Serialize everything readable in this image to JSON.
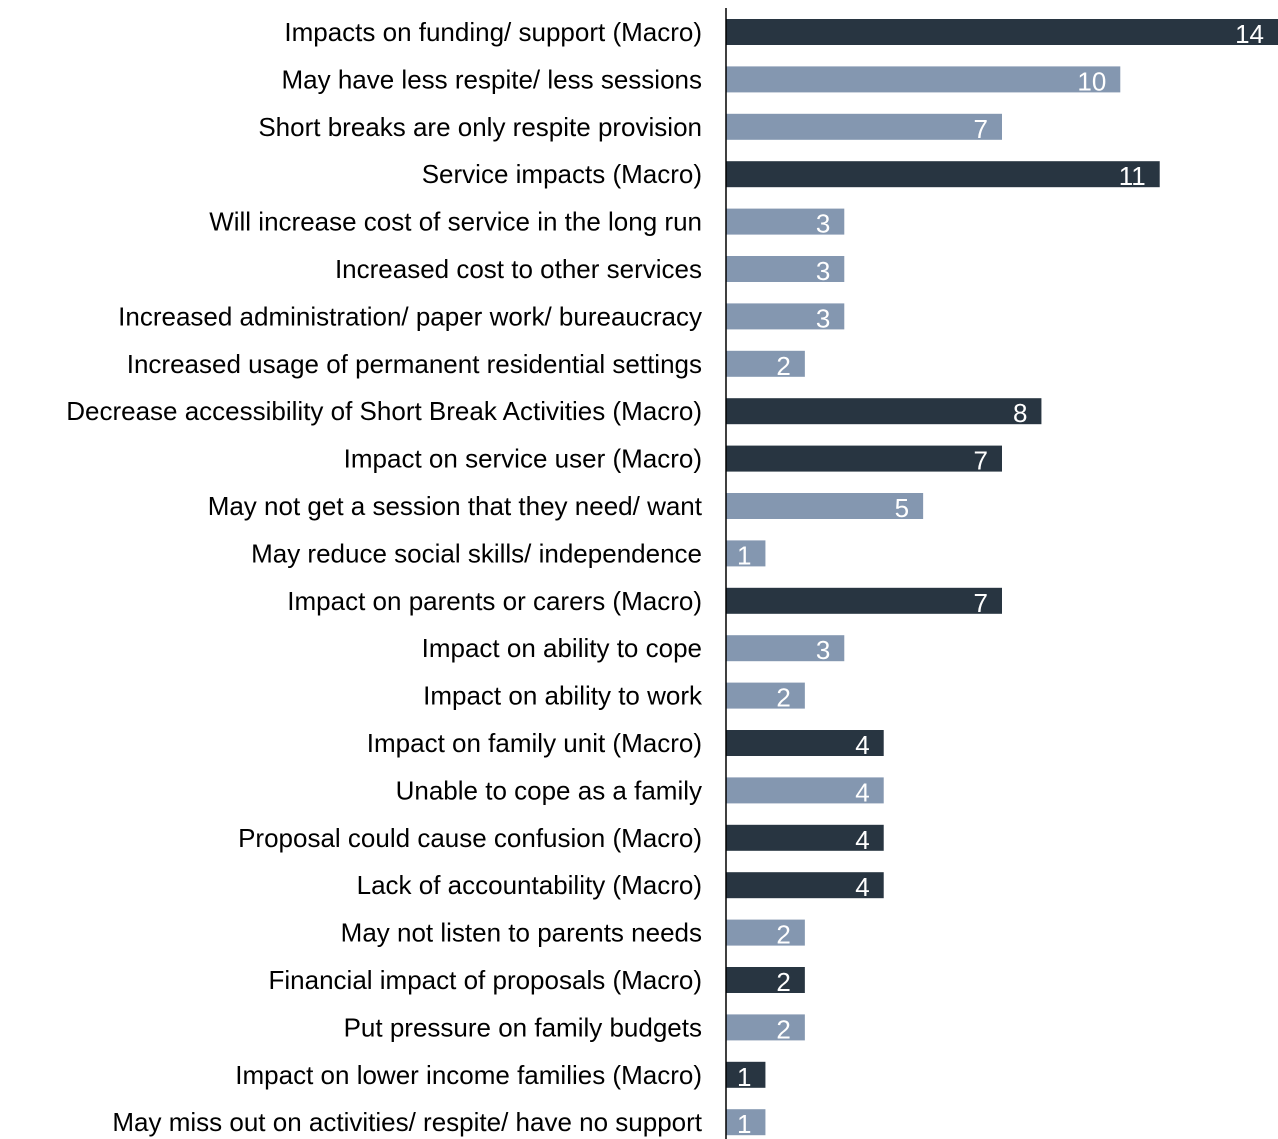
{
  "chart_data": {
    "type": "bar",
    "orientation": "horizontal",
    "xlim": [
      0,
      14
    ],
    "grid": false,
    "legend": "none",
    "colors": {
      "macro": "#283541",
      "sub": "#8497B0",
      "label_text": "#000000",
      "value_text": "#FFFFFF",
      "axis": "#000000"
    },
    "categories": [
      "Impacts on funding/ support (Macro)",
      "May have less respite/ less sessions",
      "Short breaks are only respite provision",
      "Service impacts (Macro)",
      "Will increase cost of service in the long run",
      "Increased cost to other services",
      "Increased administration/ paper work/ bureaucracy",
      "Increased usage of permanent residential settings",
      "Decrease accessibility of Short Break Activities (Macro)",
      "Impact on service user (Macro)",
      "May not get a session that they need/ want",
      "May reduce social skills/ independence",
      "Impact on parents or carers (Macro)",
      "Impact on ability to cope",
      "Impact on ability to work",
      "Impact on family unit (Macro)",
      "Unable to cope as a family",
      "Proposal could cause confusion (Macro)",
      "Lack of accountability (Macro)",
      "May not listen to parents needs",
      "Financial impact of proposals (Macro)",
      "Put pressure on family budgets",
      "Impact on lower income families (Macro)",
      "May miss out on activities/ respite/ have no support"
    ],
    "values": [
      14,
      10,
      7,
      11,
      3,
      3,
      3,
      2,
      8,
      7,
      5,
      1,
      7,
      3,
      2,
      4,
      4,
      4,
      4,
      2,
      2,
      2,
      1,
      1
    ],
    "value_labels": [
      "14",
      "10",
      "7",
      "11",
      "3",
      "3",
      "3",
      "2",
      "8",
      "7",
      "5",
      "1",
      "7",
      "3",
      "2",
      "4",
      "4",
      "4",
      "4",
      "2",
      "2",
      "2",
      "1",
      "1"
    ],
    "kinds": [
      "macro",
      "sub",
      "sub",
      "macro",
      "sub",
      "sub",
      "sub",
      "sub",
      "macro",
      "macro",
      "sub",
      "sub",
      "macro",
      "sub",
      "sub",
      "macro",
      "sub",
      "macro",
      "macro",
      "sub",
      "macro",
      "sub",
      "macro",
      "sub"
    ]
  }
}
